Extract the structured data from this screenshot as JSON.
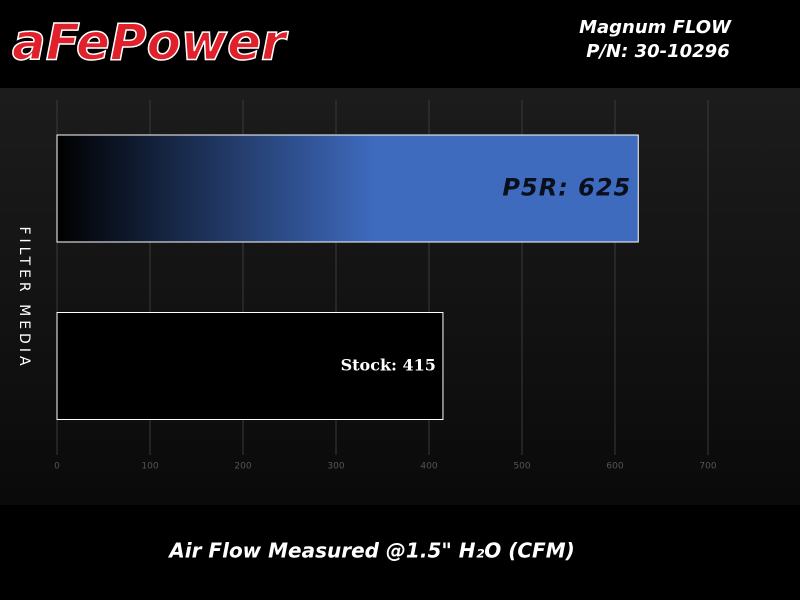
{
  "header": {
    "brand": "aFePower",
    "title": "Magnum FLOW",
    "part_number": "P/N: 30-10296"
  },
  "chart_data": {
    "type": "hbar",
    "values": [
      625,
      415
    ],
    "value_labels": [
      "P5R: 625",
      "Stock: 415"
    ],
    "colors": [
      "#3f6bbf",
      "#000000"
    ],
    "y_label": "FILTER MEDIA",
    "x_label": "Air Flow Measured @1.5\" H₂O (CFM)",
    "xlim": [
      0,
      700
    ],
    "xticks": [
      0,
      100,
      200,
      300,
      400,
      500,
      600,
      700
    ],
    "grid": true
  }
}
